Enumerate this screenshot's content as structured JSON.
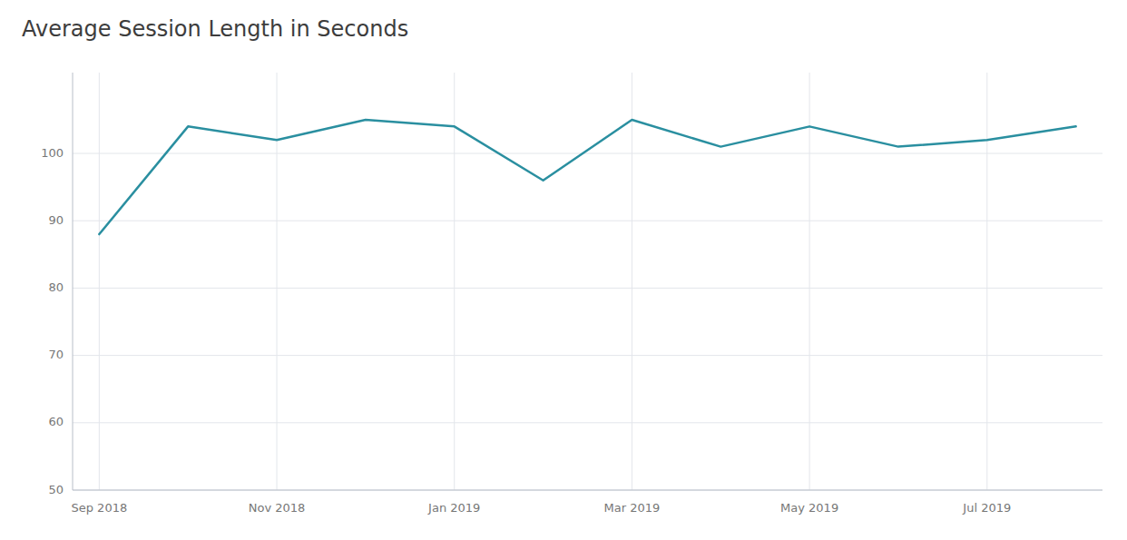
{
  "chart_data": {
    "type": "line",
    "title": "Average Session Length in Seconds",
    "categories": [
      "Sep 2018",
      null,
      "Nov 2018",
      null,
      "Jan 2019",
      null,
      "Mar 2019",
      null,
      "May 2019",
      null,
      "Jul 2019",
      null
    ],
    "values": [
      88,
      104,
      102,
      105,
      104,
      96,
      105,
      101,
      104,
      101,
      102,
      104
    ],
    "color": "#2a8fa0",
    "ylim": [
      50,
      112
    ],
    "yticks": [
      50,
      60,
      70,
      80,
      90,
      100
    ],
    "grid": true
  }
}
